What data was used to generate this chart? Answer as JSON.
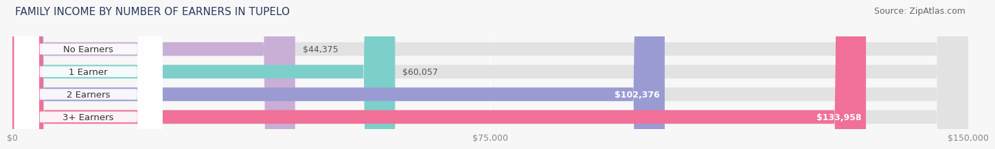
{
  "title": "FAMILY INCOME BY NUMBER OF EARNERS IN TUPELO",
  "source": "Source: ZipAtlas.com",
  "categories": [
    "No Earners",
    "1 Earner",
    "2 Earners",
    "3+ Earners"
  ],
  "values": [
    44375,
    60057,
    102376,
    133958
  ],
  "bar_colors": [
    "#c9aed6",
    "#7dcfca",
    "#9b9bd4",
    "#f07098"
  ],
  "bar_bg_color": "#e8e8e8",
  "max_value": 150000,
  "xticks": [
    0,
    75000,
    150000
  ],
  "xtick_labels": [
    "$0",
    "$75,000",
    "$150,000"
  ],
  "value_labels": [
    "$44,375",
    "$60,057",
    "$102,376",
    "$133,958"
  ],
  "value_label_inside": [
    false,
    false,
    true,
    true
  ],
  "background_color": "#f7f7f7",
  "title_fontsize": 11,
  "source_fontsize": 9,
  "label_fontsize": 9.5,
  "value_fontsize": 9,
  "tick_fontsize": 9,
  "title_color": "#2a3a5c",
  "source_color": "#666666",
  "label_color": "#333333",
  "value_color_outside": "#555555",
  "value_color_inside": "#ffffff"
}
